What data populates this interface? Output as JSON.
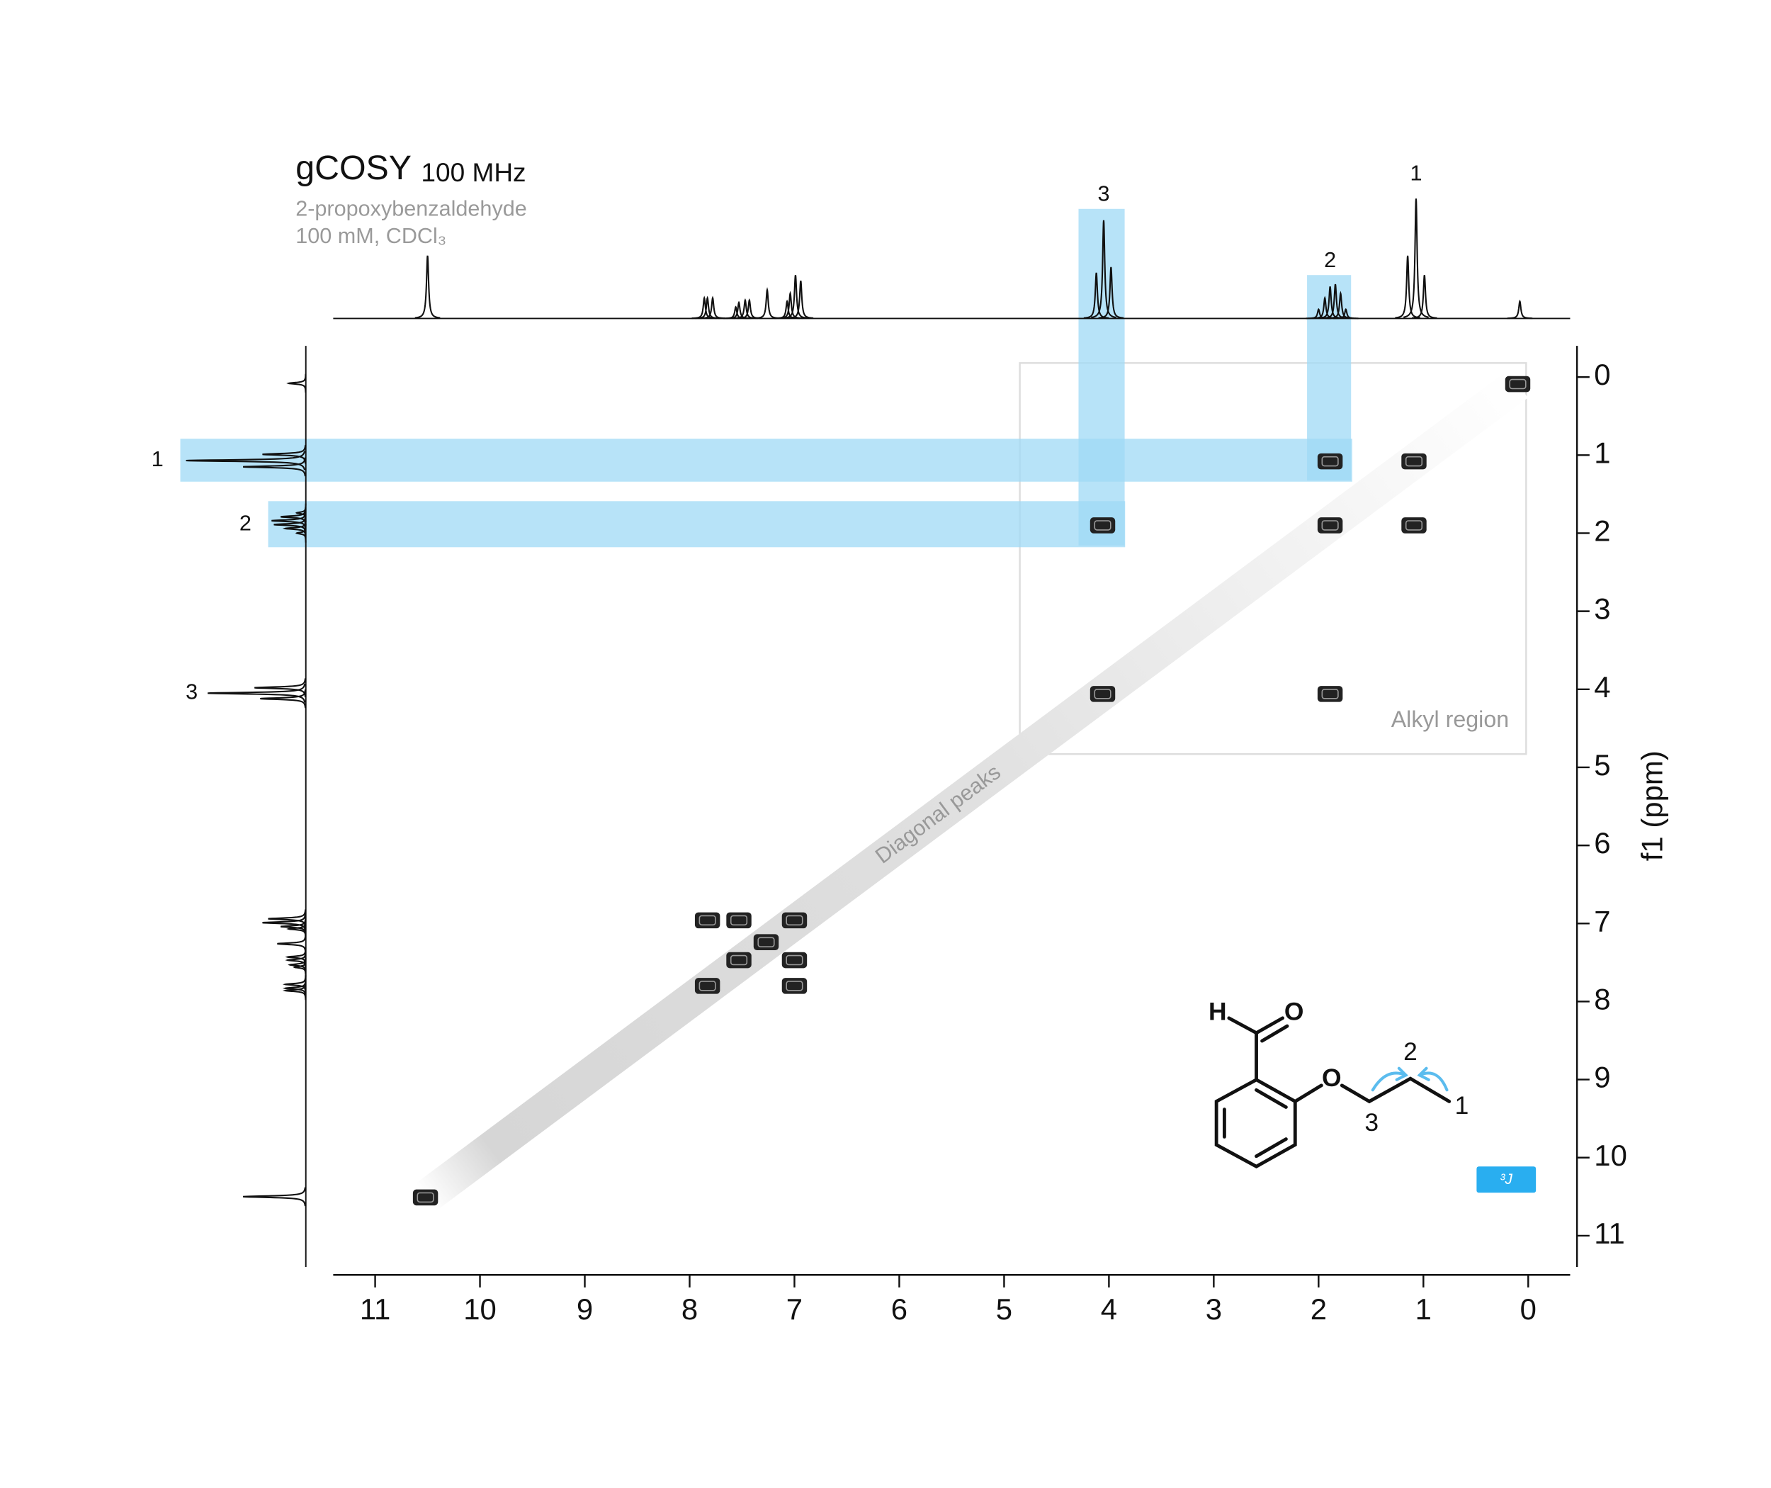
{
  "chart_data": {
    "type": "cosy",
    "title": "gCOSY",
    "subtitle": "100 MHz",
    "sample": "2-propoxybenzaldehyde",
    "conditions": "100 mM, CDCl₃",
    "ylabel": "f1 (ppm)",
    "xlim": [
      11.4,
      -0.4
    ],
    "ylim": [
      -0.4,
      11.4
    ],
    "xticks": [
      11,
      10,
      9,
      8,
      7,
      6,
      5,
      4,
      3,
      2,
      1,
      0
    ],
    "yticks": [
      0,
      1,
      2,
      3,
      4,
      5,
      6,
      7,
      8,
      9,
      10,
      11
    ],
    "spectrum": {
      "shifts": [
        10.5,
        7.86,
        7.83,
        7.78,
        7.56,
        7.53,
        7.47,
        7.43,
        7.26,
        7.07,
        7.04,
        6.99,
        6.94,
        4.12,
        4.05,
        3.98,
        2.0,
        1.94,
        1.89,
        1.84,
        1.79,
        1.74,
        1.15,
        1.07,
        0.99,
        0.08
      ],
      "intensities": [
        55,
        18,
        18,
        18,
        10,
        14,
        16,
        16,
        25,
        15,
        22,
        38,
        33,
        40,
        86,
        45,
        8,
        18,
        28,
        30,
        22,
        8,
        55,
        105,
        38,
        15
      ],
      "color": "#111111"
    },
    "peaks": {
      "x": [
        10.52,
        7.83,
        7.53,
        7.0,
        7.27,
        7.53,
        7.0,
        7.83,
        7.0,
        4.06,
        4.06,
        1.89,
        1.09,
        1.89,
        1.09,
        1.89,
        0.1
      ],
      "y": [
        10.51,
        6.96,
        6.96,
        6.96,
        7.24,
        7.47,
        7.47,
        7.8,
        7.8,
        4.06,
        1.9,
        4.06,
        1.9,
        1.9,
        1.08,
        1.08,
        0.09
      ],
      "color": "#222222"
    },
    "highlights": [
      {
        "label": "1",
        "shift": 1.07,
        "y_range": [
          0.79,
          1.34
        ]
      },
      {
        "label": "2",
        "shift": 1.89,
        "x_range": [
          2.11,
          1.69
        ],
        "y_range": [
          1.59,
          2.18
        ]
      },
      {
        "label": "3",
        "shift": 4.05,
        "x_range": [
          4.29,
          3.85
        ]
      }
    ],
    "highlight_color": "#9fd9f6",
    "region": {
      "label": "Alkyl region",
      "x_range": [
        4.85,
        0.02
      ],
      "y_range": [
        -0.18,
        4.83
      ]
    },
    "diagonal": {
      "label": "Diagonal peaks"
    },
    "structure": {
      "atoms": [
        "H",
        "O",
        "O"
      ],
      "badge": "³J"
    }
  }
}
